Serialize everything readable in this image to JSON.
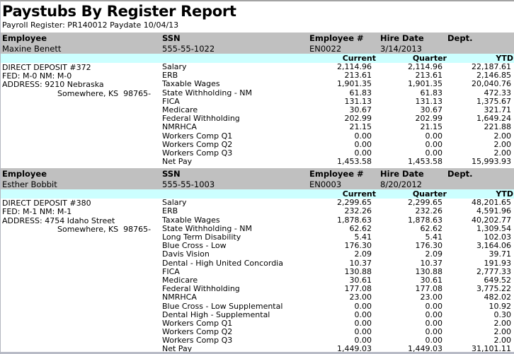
{
  "report": {
    "title": "Paystubs By Register Report",
    "subtitle": "Payroll Register: PR140012 Paydate 10/04/13",
    "columns": {
      "employee": "Employee",
      "ssn": "SSN",
      "employee_number": "Employee #",
      "hire_date": "Hire Date",
      "dept": "Dept."
    },
    "amount_columns": {
      "current": "Current",
      "quarter": "Quarter",
      "ytd": "YTD"
    },
    "employees": [
      {
        "name": "Maxine Benett",
        "ssn": "555-55-1022",
        "employee_number": "EN0022",
        "hire_date": "3/14/2013",
        "dept": "",
        "info_lines": [
          "DIRECT DEPOSIT #372",
          "FED: M-0 NM: M-0",
          "ADDRESS: 9210 Nebraska"
        ],
        "info_indent_line": "Somewhere, KS  98765-",
        "items": [
          {
            "label": "Salary",
            "current": "2,114.96",
            "quarter": "2,114.96",
            "ytd": "22,187.61"
          },
          {
            "label": "ERB",
            "current": "213.61",
            "quarter": "213.61",
            "ytd": "2,146.85"
          },
          {
            "label": "Taxable Wages",
            "current": "1,901.35",
            "quarter": "1,901.35",
            "ytd": "20,040.76"
          },
          {
            "label": "State Withholding - NM",
            "current": "61.83",
            "quarter": "61.83",
            "ytd": "472.33"
          },
          {
            "label": "FICA",
            "current": "131.13",
            "quarter": "131.13",
            "ytd": "1,375.67"
          },
          {
            "label": "Medicare",
            "current": "30.67",
            "quarter": "30.67",
            "ytd": "321.71"
          },
          {
            "label": "Federal Withholding",
            "current": "202.99",
            "quarter": "202.99",
            "ytd": "1,649.24"
          },
          {
            "label": "NMRHCA",
            "current": "21.15",
            "quarter": "21.15",
            "ytd": "221.88"
          },
          {
            "label": "Workers Comp Q1",
            "current": "0.00",
            "quarter": "0.00",
            "ytd": "2.00"
          },
          {
            "label": "Workers Comp Q2",
            "current": "0.00",
            "quarter": "0.00",
            "ytd": "2.00"
          },
          {
            "label": "Workers Comp Q3",
            "current": "0.00",
            "quarter": "0.00",
            "ytd": "2.00"
          },
          {
            "label": "Net Pay",
            "current": "1,453.58",
            "quarter": "1,453.58",
            "ytd": "15,993.93"
          }
        ]
      },
      {
        "name": "Esther Bobbit",
        "ssn": "555-55-1003",
        "employee_number": "EN0003",
        "hire_date": "8/20/2012",
        "dept": "",
        "info_lines": [
          "DIRECT DEPOSIT #380",
          "FED: M-1 NM: M-1",
          "ADDRESS: 4754 Idaho Street"
        ],
        "info_indent_line": "Somewhere, KS  98765-",
        "items": [
          {
            "label": "Salary",
            "current": "2,299.65",
            "quarter": "2,299.65",
            "ytd": "48,201.65"
          },
          {
            "label": "ERB",
            "current": "232.26",
            "quarter": "232.26",
            "ytd": "4,591.96"
          },
          {
            "label": "Taxable Wages",
            "current": "1,878.63",
            "quarter": "1,878.63",
            "ytd": "40,202.77"
          },
          {
            "label": "State Withholding - NM",
            "current": "62.62",
            "quarter": "62.62",
            "ytd": "1,309.54"
          },
          {
            "label": "Long Term Disability",
            "current": "5.41",
            "quarter": "5.41",
            "ytd": "102.03"
          },
          {
            "label": "Blue Cross - Low",
            "current": "176.30",
            "quarter": "176.30",
            "ytd": "3,164.06"
          },
          {
            "label": "Davis Vision",
            "current": "2.09",
            "quarter": "2.09",
            "ytd": "39.71"
          },
          {
            "label": "Dental - High United Concordia",
            "current": "10.37",
            "quarter": "10.37",
            "ytd": "191.93"
          },
          {
            "label": "FICA",
            "current": "130.88",
            "quarter": "130.88",
            "ytd": "2,777.33"
          },
          {
            "label": "Medicare",
            "current": "30.61",
            "quarter": "30.61",
            "ytd": "649.52"
          },
          {
            "label": "Federal Withholding",
            "current": "177.08",
            "quarter": "177.08",
            "ytd": "3,775.22"
          },
          {
            "label": "NMRHCA",
            "current": "23.00",
            "quarter": "23.00",
            "ytd": "482.02"
          },
          {
            "label": "Blue Cross - Low Supplemental",
            "current": "0.00",
            "quarter": "0.00",
            "ytd": "10.92"
          },
          {
            "label": "Dental High - Supplemental",
            "current": "0.00",
            "quarter": "0.00",
            "ytd": "0.30"
          },
          {
            "label": "Workers Comp Q1",
            "current": "0.00",
            "quarter": "0.00",
            "ytd": "2.00"
          },
          {
            "label": "Workers Comp Q2",
            "current": "0.00",
            "quarter": "0.00",
            "ytd": "2.00"
          },
          {
            "label": "Workers Comp Q3",
            "current": "0.00",
            "quarter": "0.00",
            "ytd": "2.00"
          },
          {
            "label": "Net Pay",
            "current": "1,449.03",
            "quarter": "1,449.03",
            "ytd": "31,101.11"
          }
        ]
      }
    ]
  }
}
